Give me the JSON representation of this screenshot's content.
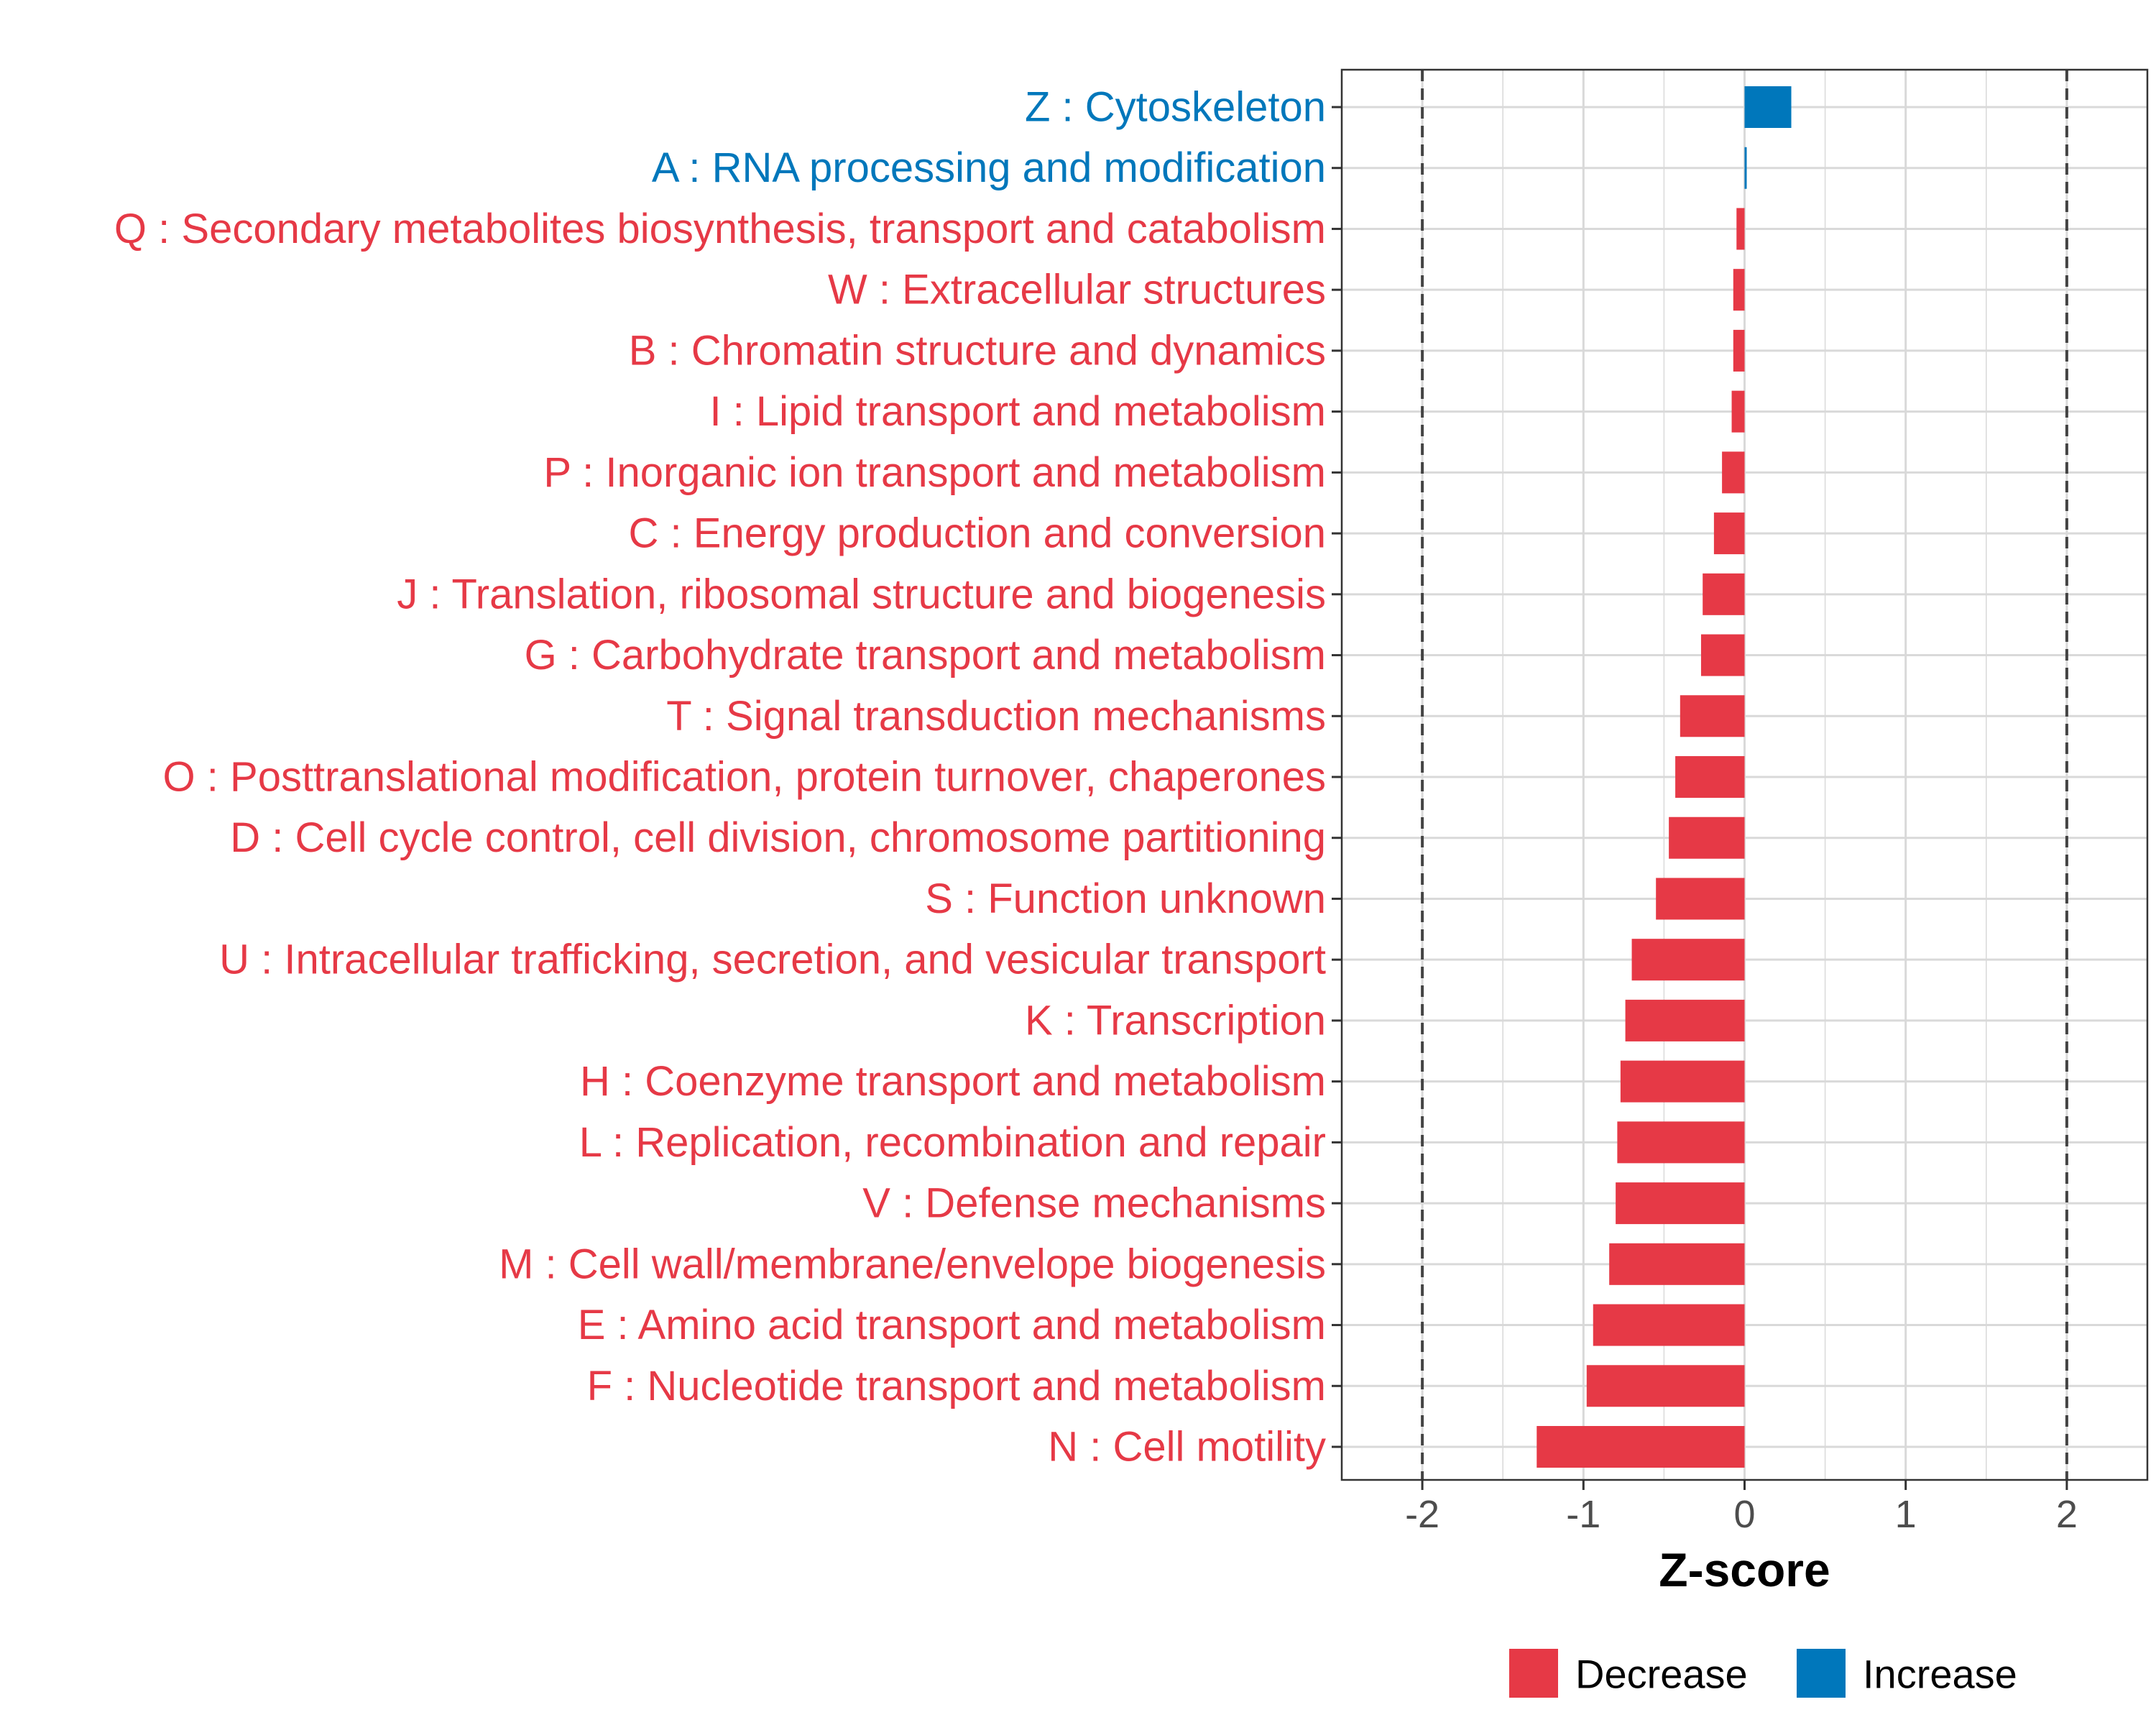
{
  "chart_data": {
    "type": "bar",
    "orientation": "horizontal",
    "xlabel": "Z-score",
    "xlim": [
      -2.5,
      2.5
    ],
    "xticks": [
      -2,
      -1,
      0,
      1,
      2
    ],
    "xtick_labels": [
      "-2",
      "-1",
      "0",
      "1",
      "2"
    ],
    "reference_lines": [
      -2,
      2
    ],
    "grid": true,
    "legend_position": "bottom",
    "colors": {
      "Decrease": "#E63946",
      "Increase": "#0077BB"
    },
    "legend": [
      {
        "label": "Decrease",
        "color": "#E63946"
      },
      {
        "label": "Increase",
        "color": "#0077BB"
      }
    ],
    "bars": [
      {
        "label": "Z : Cytoskeleton",
        "value": 0.29,
        "direction": "Increase"
      },
      {
        "label": "A : RNA processing and modification",
        "value": 0.01,
        "direction": "Increase"
      },
      {
        "label": "Q : Secondary metabolites biosynthesis, transport and catabolism",
        "value": -0.05,
        "direction": "Decrease"
      },
      {
        "label": "W : Extracellular structures",
        "value": -0.07,
        "direction": "Decrease"
      },
      {
        "label": "B : Chromatin structure and dynamics",
        "value": -0.07,
        "direction": "Decrease"
      },
      {
        "label": "I : Lipid transport and metabolism",
        "value": -0.08,
        "direction": "Decrease"
      },
      {
        "label": "P : Inorganic ion transport and metabolism",
        "value": -0.14,
        "direction": "Decrease"
      },
      {
        "label": "C : Energy production and conversion",
        "value": -0.19,
        "direction": "Decrease"
      },
      {
        "label": "J : Translation, ribosomal structure and biogenesis",
        "value": -0.26,
        "direction": "Decrease"
      },
      {
        "label": "G : Carbohydrate transport and metabolism",
        "value": -0.27,
        "direction": "Decrease"
      },
      {
        "label": "T : Signal transduction mechanisms",
        "value": -0.4,
        "direction": "Decrease"
      },
      {
        "label": "O : Posttranslational modification, protein turnover, chaperones",
        "value": -0.43,
        "direction": "Decrease"
      },
      {
        "label": "D : Cell cycle control, cell division, chromosome partitioning",
        "value": -0.47,
        "direction": "Decrease"
      },
      {
        "label": "S : Function unknown",
        "value": -0.55,
        "direction": "Decrease"
      },
      {
        "label": "U : Intracellular trafficking, secretion, and vesicular transport",
        "value": -0.7,
        "direction": "Decrease"
      },
      {
        "label": "K : Transcription",
        "value": -0.74,
        "direction": "Decrease"
      },
      {
        "label": "H : Coenzyme transport and metabolism",
        "value": -0.77,
        "direction": "Decrease"
      },
      {
        "label": "L : Replication, recombination and repair",
        "value": -0.79,
        "direction": "Decrease"
      },
      {
        "label": "V : Defense mechanisms",
        "value": -0.8,
        "direction": "Decrease"
      },
      {
        "label": "M : Cell wall/membrane/envelope biogenesis",
        "value": -0.84,
        "direction": "Decrease"
      },
      {
        "label": "E : Amino acid transport and metabolism",
        "value": -0.94,
        "direction": "Decrease"
      },
      {
        "label": "F : Nucleotide transport and metabolism",
        "value": -0.98,
        "direction": "Decrease"
      },
      {
        "label": "N : Cell motility",
        "value": -1.29,
        "direction": "Decrease"
      }
    ]
  }
}
